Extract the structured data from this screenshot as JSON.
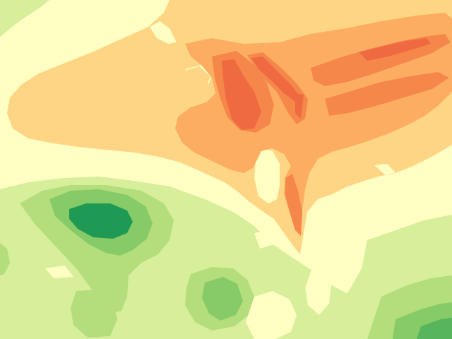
{
  "map": {
    "type": "filled-contour",
    "labels_shown": false,
    "colors": {
      "background": "#ffffc4",
      "cream": "#fff8bc",
      "light_orange": "#fed584",
      "orange": "#fdad62",
      "dark_orange": "#f6874a",
      "red_orange": "#ef6a40",
      "pale_green": "#d7ee9a",
      "light_green": "#b4dd7c",
      "mid_green": "#86cb67",
      "green": "#57b55e",
      "dark_green": "#1f9a54"
    }
  }
}
